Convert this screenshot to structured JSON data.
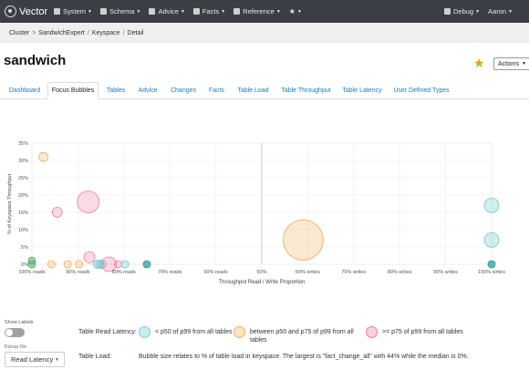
{
  "topbar": {
    "brand": "Vector",
    "menus": [
      {
        "label": "System",
        "icon": "server-icon"
      },
      {
        "label": "Schema",
        "icon": "grid-icon"
      },
      {
        "label": "Advice",
        "icon": "lightbulb-icon"
      },
      {
        "label": "Facts",
        "icon": "briefcase-icon"
      },
      {
        "label": "Reference",
        "icon": "bookmark-icon"
      },
      {
        "label": "",
        "icon": "star-icon"
      }
    ],
    "right_menus": [
      {
        "label": "Debug",
        "icon": "bug-icon"
      },
      {
        "label": "Aaron",
        "icon": ""
      }
    ]
  },
  "breadcrumb": {
    "root": "Cluster",
    "sep1": ">",
    "cluster": "SandwichExpert",
    "sep2": "/",
    "section": "Keyspace",
    "sep3": "/",
    "page": "Detail"
  },
  "page": {
    "title": "sandwich",
    "actions_label": "Actions"
  },
  "tabs": [
    {
      "label": "Dashboard",
      "active": false
    },
    {
      "label": "Focus Bubbles",
      "active": true
    },
    {
      "label": "Tables",
      "active": false
    },
    {
      "label": "Advice",
      "active": false
    },
    {
      "label": "Changes",
      "active": false
    },
    {
      "label": "Facts",
      "active": false
    },
    {
      "label": "Table Load",
      "active": false
    },
    {
      "label": "Table Throughput",
      "active": false
    },
    {
      "label": "Table Latency",
      "active": false
    },
    {
      "label": "User Defined Types",
      "active": false
    }
  ],
  "chart_data": {
    "type": "scatter",
    "xlabel": "Throughput Read / Write Proportion",
    "ylabel": "% of Keyspace Throughput",
    "x_ticks": [
      "100% reads",
      "90% reads",
      "80% reads",
      "70% reads",
      "60% reads",
      "50%",
      "60% writes",
      "70% writes",
      "80% writes",
      "90% writes",
      "100% writes"
    ],
    "y_ticks": [
      "0%",
      "5%",
      "10%",
      "15%",
      "20%",
      "25%",
      "30%",
      "35%"
    ],
    "x_range": [
      -100,
      100
    ],
    "ylim": [
      0,
      35
    ],
    "grid": true,
    "colors": {
      "low": "#5ec4c4",
      "mid": "#f5b060",
      "high": "#ee7c9c"
    },
    "points": [
      {
        "x": -100,
        "y": 0,
        "size": 4,
        "latency": "green"
      },
      {
        "x": -100,
        "y": 1,
        "size": 4,
        "latency": "green"
      },
      {
        "x": -95,
        "y": 31,
        "size": 5,
        "latency": "mid"
      },
      {
        "x": -91.5,
        "y": 0,
        "size": 4,
        "latency": "mid"
      },
      {
        "x": -89,
        "y": 15,
        "size": 5.5,
        "latency": "high"
      },
      {
        "x": -84.5,
        "y": 0,
        "size": 4,
        "latency": "mid"
      },
      {
        "x": -79.5,
        "y": 0,
        "size": 4,
        "latency": "mid"
      },
      {
        "x": -75.5,
        "y": 18,
        "size": 12,
        "latency": "high"
      },
      {
        "x": -75,
        "y": 2,
        "size": 6,
        "latency": "high"
      },
      {
        "x": -71.5,
        "y": 0,
        "size": 4.5,
        "latency": "low"
      },
      {
        "x": -70.5,
        "y": 0,
        "size": 4.5,
        "latency": "low"
      },
      {
        "x": -69.5,
        "y": 0,
        "size": 4.5,
        "latency": "low"
      },
      {
        "x": -66.5,
        "y": 0,
        "size": 8,
        "latency": "high"
      },
      {
        "x": -62.5,
        "y": 0,
        "size": 4,
        "latency": "high"
      },
      {
        "x": -59.5,
        "y": 0,
        "size": 4,
        "latency": "low"
      },
      {
        "x": -50,
        "y": 0,
        "size": 4,
        "latency": "teal"
      },
      {
        "x": 18,
        "y": 7,
        "size": 22,
        "latency": "mid"
      },
      {
        "x": 100,
        "y": 17,
        "size": 8,
        "latency": "low"
      },
      {
        "x": 100,
        "y": 7,
        "size": 8,
        "latency": "low"
      },
      {
        "x": 100,
        "y": 0,
        "size": 4,
        "latency": "teal"
      }
    ]
  },
  "controls": {
    "show_labels": "Show Labels",
    "focus_on": "Focus On",
    "focus_value": "Read Latency"
  },
  "legend": {
    "latency_label": "Table Read Latency:",
    "low": "< p50 of p99 from all tables",
    "mid_line1": "between p50 and p75 of p99 from all",
    "mid_line2": "tables",
    "high": ">= p75 of p99 from all tables",
    "load_label": "Table Load:",
    "load_text": "Bubble size relates to % of table load in keyspace. The largest is \"fact_change_all\" with 44% while the median is 0%."
  }
}
